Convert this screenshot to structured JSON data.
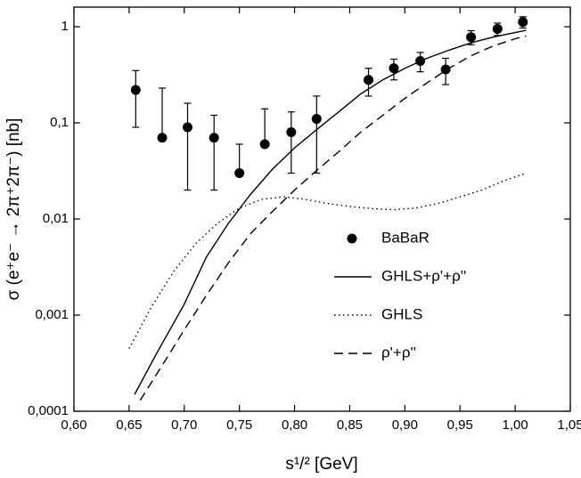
{
  "chart_data": {
    "type": "scatter",
    "xlabel": "s¹/² [GeV]",
    "ylabel": "σ (e⁺e⁻ → 2π⁺2π⁻)  [nb]",
    "xlim": [
      0.6,
      1.05
    ],
    "xticks": [
      {
        "value": 0.6,
        "label": "0,60"
      },
      {
        "value": 0.65,
        "label": "0,65"
      },
      {
        "value": 0.7,
        "label": "0,70"
      },
      {
        "value": 0.75,
        "label": "0,75"
      },
      {
        "value": 0.8,
        "label": "0,80"
      },
      {
        "value": 0.85,
        "label": "0,85"
      },
      {
        "value": 0.9,
        "label": "0,90"
      },
      {
        "value": 0.95,
        "label": "0,95"
      },
      {
        "value": 1.0,
        "label": "1,00"
      },
      {
        "value": 1.05,
        "label": "1,05"
      }
    ],
    "ylim": [
      0.0001,
      1.6
    ],
    "yticks": [
      {
        "value": 0.0001,
        "label": "0,0001"
      },
      {
        "value": 0.001,
        "label": "0,001"
      },
      {
        "value": 0.01,
        "label": "0,01"
      },
      {
        "value": 0.1,
        "label": "0,1"
      },
      1
    ],
    "ylog": true,
    "legend": "lower right",
    "series": [
      {
        "name": "BaBaR",
        "style": "points",
        "color": "#000000",
        "x": [
          0.656,
          0.68,
          0.703,
          0.727,
          0.75,
          0.773,
          0.797,
          0.82,
          0.867,
          0.89,
          0.914,
          0.937,
          0.96,
          0.984,
          1.007
        ],
        "values": [
          0.22,
          0.07,
          0.09,
          0.07,
          0.03,
          0.06,
          0.08,
          0.11,
          0.28,
          0.37,
          0.44,
          0.36,
          0.78,
          0.95,
          1.12
        ],
        "errors": [
          0.13,
          0.16,
          0.07,
          0.05,
          0.03,
          0.08,
          0.05,
          0.08,
          0.09,
          0.09,
          0.1,
          0.11,
          0.13,
          0.14,
          0.15
        ]
      },
      {
        "name": "GHLS+ρ'+ρ''",
        "style": "solid",
        "color": "#000000",
        "x": [
          0.655,
          0.675,
          0.7,
          0.72,
          0.74,
          0.76,
          0.78,
          0.8,
          0.82,
          0.84,
          0.86,
          0.88,
          0.9,
          0.92,
          0.94,
          0.96,
          0.98,
          1.0,
          1.01
        ],
        "values": [
          0.00015,
          0.0004,
          0.0013,
          0.004,
          0.009,
          0.018,
          0.033,
          0.055,
          0.085,
          0.13,
          0.2,
          0.28,
          0.37,
          0.47,
          0.57,
          0.68,
          0.78,
          0.87,
          0.92
        ]
      },
      {
        "name": "GHLS",
        "style": "dotted",
        "color": "#000000",
        "x": [
          0.65,
          0.67,
          0.69,
          0.71,
          0.73,
          0.75,
          0.77,
          0.79,
          0.81,
          0.83,
          0.85,
          0.87,
          0.89,
          0.91,
          0.93,
          0.95,
          0.97,
          0.99,
          1.01
        ],
        "values": [
          0.00045,
          0.0012,
          0.0028,
          0.0055,
          0.009,
          0.013,
          0.016,
          0.017,
          0.016,
          0.0145,
          0.0135,
          0.0128,
          0.0125,
          0.013,
          0.0145,
          0.017,
          0.02,
          0.025,
          0.03
        ]
      },
      {
        "name": "ρ'+ρ''",
        "style": "dashed",
        "color": "#000000",
        "x": [
          0.66,
          0.68,
          0.7,
          0.72,
          0.74,
          0.76,
          0.78,
          0.8,
          0.82,
          0.84,
          0.86,
          0.88,
          0.9,
          0.92,
          0.94,
          0.96,
          0.98,
          1.0,
          1.01
        ],
        "values": [
          0.00013,
          0.0003,
          0.0007,
          0.0016,
          0.0035,
          0.007,
          0.012,
          0.02,
          0.032,
          0.05,
          0.08,
          0.12,
          0.18,
          0.26,
          0.37,
          0.5,
          0.63,
          0.75,
          0.8
        ]
      }
    ]
  }
}
